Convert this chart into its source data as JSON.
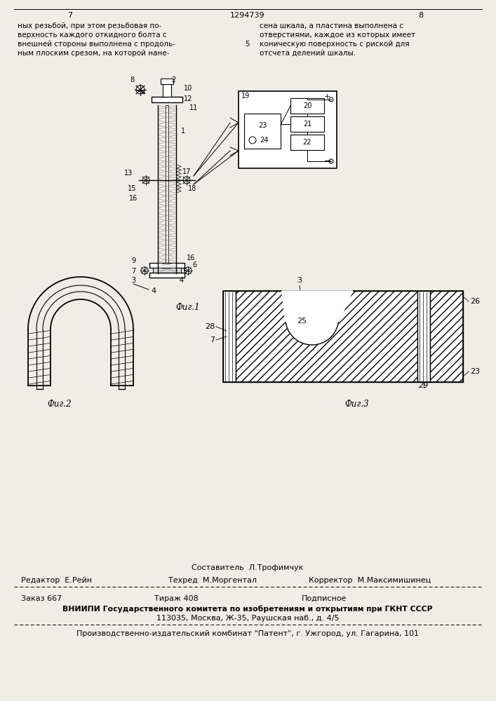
{
  "bg_color": "#f0ede8",
  "page_num_left": "7",
  "page_num_center": "1294739",
  "page_num_right": "8",
  "text_col1_lines": [
    "ных резьбой, при этом резьбовая по-",
    "верхность каждого откидного болта с",
    "внешней стороны выполнена с продоль-",
    "ным плоским срезом, на которой нане-"
  ],
  "text_col2_lines": [
    "сена шкала, а пластина выполнена с",
    "отверстиями, каждое из которых имеет",
    "коническую поверхность с риской для",
    "отсчета делений шкалы."
  ],
  "col2_num": "5",
  "fig1_caption": "Фuг.1",
  "fig2_caption": "Фuг.2",
  "fig3_caption": "Фuг.3",
  "footer_composer": "Составитель  Л.Трофимчук",
  "footer_editor": "Редактор  Е.Рейн",
  "footer_techred": "Техред  М.Моргентал",
  "footer_corrector": "Корректор  М.Максимишинец",
  "footer_order": "Заказ 667",
  "footer_tirazh": "Тираж 408",
  "footer_podpisnoe": "Подписное",
  "footer_vniiphi": "ВНИИПИ Государственного комитета по изобретениям и открытиям при ГКНТ СССР",
  "footer_address": "113035, Москва, Ж-35, Раушская наб., д. 4/5",
  "footer_kombinat": "Производственно-издательский комбинат \"Патент\", г. Ужгород, ул. Гагарина, 101"
}
